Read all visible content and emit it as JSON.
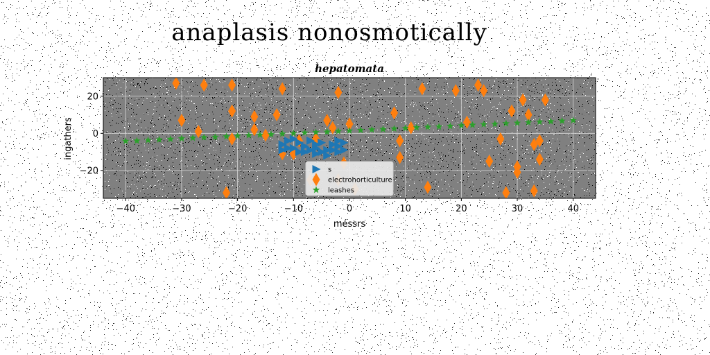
{
  "figure": {
    "suptitle": "anaplasis nonosmotically"
  },
  "chart_data": {
    "type": "scatter",
    "title": "hepatomata",
    "xlabel": "méssrs",
    "ylabel": "ingathers",
    "xlim": [
      -44,
      44
    ],
    "ylim": [
      -35,
      30
    ],
    "xticks": [
      -40,
      -30,
      -20,
      -10,
      0,
      10,
      20,
      30,
      40
    ],
    "yticks": [
      -20,
      0,
      20
    ],
    "xtick_labels": [
      "−40",
      "−30",
      "−20",
      "−10",
      "0",
      "10",
      "20",
      "30",
      "40"
    ],
    "ytick_labels": [
      "−20",
      "0",
      "20"
    ],
    "grid": true,
    "legend_position": "bottom-center",
    "background": "#808080",
    "series": [
      {
        "name": "s",
        "marker": "triangle-right",
        "color": "#1f77b4",
        "points": [
          [
            -12,
            -6
          ],
          [
            -11,
            -4
          ],
          [
            -10,
            -8
          ],
          [
            -9,
            -5
          ],
          [
            -8,
            -10
          ],
          [
            -7,
            -4
          ],
          [
            -6,
            -8
          ],
          [
            -5,
            -5
          ],
          [
            -4,
            -9
          ],
          [
            -3,
            -6
          ],
          [
            -2,
            -7
          ],
          [
            -1,
            -5
          ],
          [
            -9,
            -10
          ],
          [
            -11,
            -8
          ],
          [
            -6,
            -6
          ],
          [
            -4,
            -12
          ],
          [
            -3,
            -9
          ],
          [
            -2,
            -4
          ],
          [
            -1,
            -9
          ],
          [
            -8,
            -7
          ],
          [
            -10,
            -3
          ],
          [
            -5,
            -10
          ],
          [
            -7,
            -9
          ],
          [
            -12,
            -9
          ],
          [
            -2,
            -10
          ],
          [
            -6,
            -11
          ]
        ]
      },
      {
        "name": "electrohorticulture",
        "marker": "thin-diamond",
        "color": "#ff7f0e",
        "points": [
          [
            -31,
            27
          ],
          [
            -26,
            26
          ],
          [
            -21,
            26
          ],
          [
            -12,
            24
          ],
          [
            -2,
            22
          ],
          [
            13,
            24
          ],
          [
            19,
            23
          ],
          [
            23,
            26
          ],
          [
            24,
            23
          ],
          [
            -30,
            7
          ],
          [
            -21,
            12
          ],
          [
            -17,
            9
          ],
          [
            -13,
            10
          ],
          [
            -17,
            2
          ],
          [
            -15,
            -1
          ],
          [
            -27,
            1
          ],
          [
            -21,
            -3
          ],
          [
            -4,
            7
          ],
          [
            -3,
            3
          ],
          [
            0,
            5
          ],
          [
            -6,
            -3
          ],
          [
            -9,
            -4
          ],
          [
            -10,
            -11
          ],
          [
            -12,
            -11
          ],
          [
            -7,
            -25
          ],
          [
            -2,
            -25
          ],
          [
            -1,
            -16
          ],
          [
            1,
            -30
          ],
          [
            8,
            11
          ],
          [
            9,
            -4
          ],
          [
            9,
            -13
          ],
          [
            11,
            3
          ],
          [
            14,
            -29
          ],
          [
            21,
            6
          ],
          [
            25,
            -15
          ],
          [
            27,
            -3
          ],
          [
            29,
            12
          ],
          [
            30,
            -18
          ],
          [
            30,
            -21
          ],
          [
            31,
            18
          ],
          [
            32,
            10
          ],
          [
            33,
            -6
          ],
          [
            34,
            -4
          ],
          [
            34,
            -14
          ],
          [
            35,
            18
          ],
          [
            28,
            -32
          ],
          [
            33,
            -31
          ],
          [
            -22,
            -32
          ]
        ]
      },
      {
        "name": "leashes",
        "marker": "star",
        "color": "#2ca02c",
        "points": [
          [
            -40,
            -4.2
          ],
          [
            -38,
            -4.0
          ],
          [
            -36,
            -3.7
          ],
          [
            -34,
            -3.4
          ],
          [
            -32,
            -3.1
          ],
          [
            -30,
            -2.8
          ],
          [
            -28,
            -2.5
          ],
          [
            -26,
            -2.2
          ],
          [
            -24,
            -2.0
          ],
          [
            -22,
            -1.7
          ],
          [
            -20,
            -1.4
          ],
          [
            -18,
            -1.1
          ],
          [
            -16,
            -0.8
          ],
          [
            -14,
            -0.6
          ],
          [
            -12,
            -0.3
          ],
          [
            -10,
            0.0
          ],
          [
            -8,
            0.3
          ],
          [
            -6,
            0.6
          ],
          [
            -4,
            0.8
          ],
          [
            -2,
            1.1
          ],
          [
            0,
            1.4
          ],
          [
            2,
            1.7
          ],
          [
            4,
            2.0
          ],
          [
            6,
            2.2
          ],
          [
            8,
            2.5
          ],
          [
            10,
            2.8
          ],
          [
            12,
            3.1
          ],
          [
            14,
            3.4
          ],
          [
            16,
            3.6
          ],
          [
            18,
            3.9
          ],
          [
            20,
            4.2
          ],
          [
            22,
            4.5
          ],
          [
            24,
            4.8
          ],
          [
            26,
            5.0
          ],
          [
            28,
            5.3
          ],
          [
            30,
            5.6
          ],
          [
            32,
            5.9
          ],
          [
            34,
            6.2
          ],
          [
            36,
            6.4
          ],
          [
            38,
            6.7
          ],
          [
            40,
            7.0
          ]
        ]
      }
    ]
  }
}
